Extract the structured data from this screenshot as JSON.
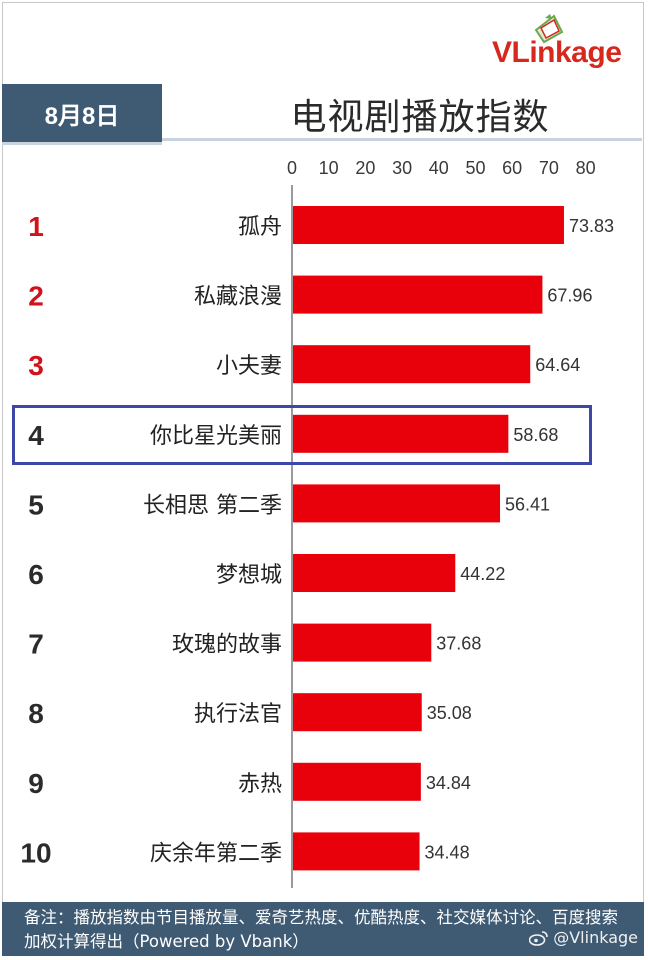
{
  "logo": {
    "text": "VLinkage"
  },
  "date_badge": "8月8日",
  "title": "电视剧播放指数",
  "chart_data": {
    "type": "bar",
    "orientation": "horizontal",
    "title": "电视剧播放指数",
    "xlim": [
      0,
      80
    ],
    "ticks": [
      0,
      10,
      20,
      30,
      40,
      50,
      60,
      70,
      80
    ],
    "ranks": [
      "1",
      "2",
      "3",
      "4",
      "5",
      "6",
      "7",
      "8",
      "9",
      "10"
    ],
    "categories": [
      "孤舟",
      "私藏浪漫",
      "小夫妻",
      "你比星光美丽",
      "长相思 第二季",
      "梦想城",
      "玫瑰的故事",
      "执行法官",
      "赤热",
      "庆余年第二季"
    ],
    "values": [
      73.83,
      67.96,
      64.64,
      58.68,
      56.41,
      44.22,
      37.68,
      35.08,
      34.84,
      34.48
    ],
    "value_labels": [
      "73.83",
      "67.96",
      "64.64",
      "58.68",
      "56.41",
      "44.22",
      "37.68",
      "35.08",
      "34.84",
      "34.48"
    ],
    "bar_color": "#e8000b",
    "top_rank_color": "#d0121b",
    "rank_color": "#2b2b2b",
    "highlighted_index": 3
  },
  "footer": {
    "note": "备注：播放指数由节目播放量、爱奇艺热度、优酷热度、社交媒体讨论、百度搜索加权计算得出（Powered by Vbank）",
    "weibo": "@Vlinkage"
  },
  "colors": {
    "header_bg": "#3f5a73",
    "highlight_border": "#3d47a8"
  }
}
